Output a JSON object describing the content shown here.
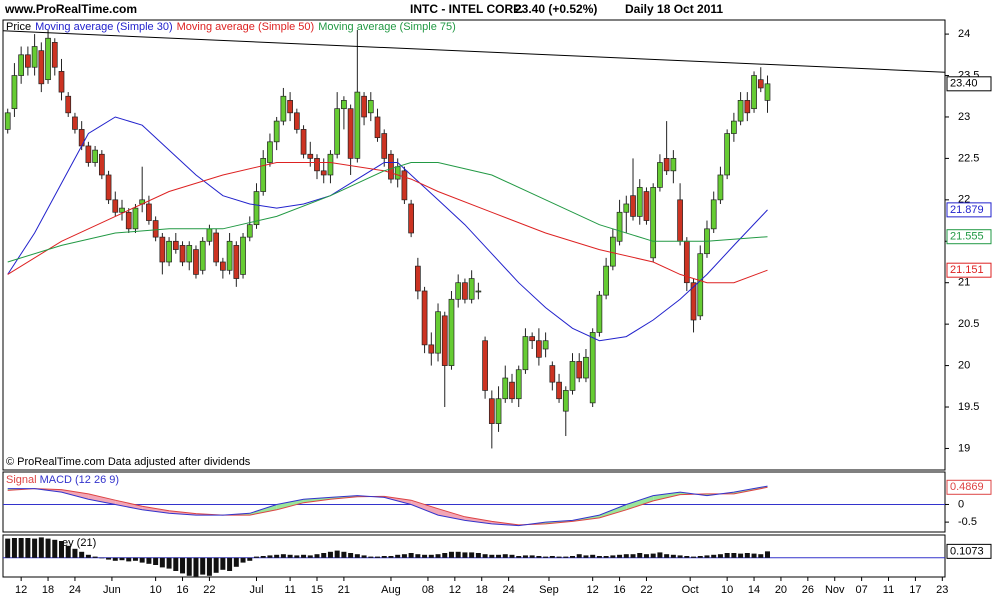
{
  "header": {
    "site": "www.ProRealTime.com"
  },
  "chart_data": [
    {
      "type": "candlestick",
      "title": "INTC - INTEL CORP.",
      "subtitle": "23.40 (+0.52%)",
      "period": "Daily  18 Oct 2011",
      "label": "Price",
      "note": "© ProRealTime.com  Data adjusted after dividends",
      "up_color": "#66cc33",
      "down_color": "#cc3322",
      "candles": [
        [
          22.85,
          23.1,
          22.8,
          23.05
        ],
        [
          23.1,
          23.65,
          23.0,
          23.5
        ],
        [
          23.5,
          23.85,
          23.4,
          23.75
        ],
        [
          23.75,
          23.85,
          23.5,
          23.6
        ],
        [
          23.6,
          24.0,
          23.5,
          23.85
        ],
        [
          23.8,
          23.9,
          23.3,
          23.4
        ],
        [
          23.45,
          24.05,
          23.4,
          23.95
        ],
        [
          23.9,
          23.95,
          23.5,
          23.6
        ],
        [
          23.55,
          23.7,
          23.2,
          23.3
        ],
        [
          23.25,
          23.3,
          23.0,
          23.05
        ],
        [
          23.0,
          23.05,
          22.8,
          22.85
        ],
        [
          22.85,
          22.95,
          22.6,
          22.65
        ],
        [
          22.65,
          22.7,
          22.4,
          22.45
        ],
        [
          22.45,
          22.65,
          22.4,
          22.6
        ],
        [
          22.55,
          22.6,
          22.25,
          22.3
        ],
        [
          22.3,
          22.35,
          21.95,
          22.0
        ],
        [
          22.0,
          22.1,
          21.8,
          21.85
        ],
        [
          21.85,
          22.0,
          21.75,
          21.9
        ],
        [
          21.85,
          21.9,
          21.6,
          21.65
        ],
        [
          21.65,
          21.95,
          21.6,
          21.9
        ],
        [
          21.95,
          22.4,
          21.85,
          22.0
        ],
        [
          21.95,
          22.05,
          21.7,
          21.75
        ],
        [
          21.75,
          21.8,
          21.5,
          21.55
        ],
        [
          21.55,
          21.6,
          21.1,
          21.25
        ],
        [
          21.25,
          21.55,
          21.2,
          21.5
        ],
        [
          21.5,
          21.6,
          21.35,
          21.4
        ],
        [
          21.45,
          21.5,
          21.2,
          21.25
        ],
        [
          21.25,
          21.5,
          21.15,
          21.45
        ],
        [
          21.4,
          21.45,
          21.05,
          21.1
        ],
        [
          21.15,
          21.55,
          21.1,
          21.5
        ],
        [
          21.5,
          21.7,
          21.45,
          21.65
        ],
        [
          21.6,
          21.65,
          21.2,
          21.25
        ],
        [
          21.25,
          21.3,
          21.05,
          21.15
        ],
        [
          21.15,
          21.6,
          21.1,
          21.5
        ],
        [
          21.45,
          21.5,
          20.95,
          21.05
        ],
        [
          21.1,
          21.6,
          21.05,
          21.55
        ],
        [
          21.55,
          21.8,
          21.5,
          21.7
        ],
        [
          21.7,
          22.2,
          21.65,
          22.1
        ],
        [
          22.1,
          22.6,
          22.05,
          22.5
        ],
        [
          22.45,
          22.8,
          22.4,
          22.7
        ],
        [
          22.7,
          23.0,
          22.6,
          22.95
        ],
        [
          22.95,
          23.35,
          22.9,
          23.25
        ],
        [
          23.2,
          23.3,
          22.95,
          23.05
        ],
        [
          23.05,
          23.1,
          22.8,
          22.85
        ],
        [
          22.85,
          22.9,
          22.5,
          22.55
        ],
        [
          22.55,
          22.7,
          22.4,
          22.5
        ],
        [
          22.5,
          22.55,
          22.25,
          22.35
        ],
        [
          22.35,
          22.5,
          22.2,
          22.3
        ],
        [
          22.3,
          22.6,
          22.2,
          22.55
        ],
        [
          22.55,
          23.3,
          22.5,
          23.1
        ],
        [
          23.1,
          23.25,
          22.85,
          23.2
        ],
        [
          23.1,
          23.15,
          22.3,
          22.5
        ],
        [
          22.5,
          24.05,
          22.45,
          23.3
        ],
        [
          23.25,
          23.3,
          22.9,
          23.0
        ],
        [
          23.05,
          23.3,
          22.95,
          23.2
        ],
        [
          23.0,
          23.1,
          22.7,
          22.75
        ],
        [
          22.8,
          22.85,
          22.4,
          22.5
        ],
        [
          22.55,
          22.6,
          22.2,
          22.25
        ],
        [
          22.25,
          22.5,
          22.15,
          22.4
        ],
        [
          22.35,
          22.4,
          21.95,
          22.0
        ],
        [
          21.95,
          22.0,
          21.55,
          21.6
        ],
        [
          21.2,
          21.3,
          20.8,
          20.9
        ],
        [
          20.9,
          20.95,
          20.15,
          20.25
        ],
        [
          20.25,
          20.4,
          20.0,
          20.15
        ],
        [
          20.15,
          20.75,
          20.05,
          20.65
        ],
        [
          20.6,
          20.65,
          19.5,
          20.0
        ],
        [
          20.0,
          20.9,
          19.95,
          20.8
        ],
        [
          20.8,
          21.1,
          20.7,
          21.0
        ],
        [
          21.0,
          21.05,
          20.75,
          20.8
        ],
        [
          20.8,
          21.15,
          20.75,
          21.05
        ],
        [
          20.9,
          21.0,
          20.8,
          20.9
        ],
        [
          20.3,
          20.35,
          19.6,
          19.7
        ],
        [
          19.6,
          19.7,
          19.0,
          19.3
        ],
        [
          19.3,
          19.75,
          19.2,
          19.6
        ],
        [
          19.6,
          20.0,
          19.55,
          19.85
        ],
        [
          19.8,
          19.9,
          19.55,
          19.6
        ],
        [
          19.6,
          20.0,
          19.5,
          19.95
        ],
        [
          19.95,
          20.45,
          19.9,
          20.35
        ],
        [
          20.35,
          20.4,
          20.2,
          20.3
        ],
        [
          20.3,
          20.45,
          20.0,
          20.1
        ],
        [
          20.2,
          20.4,
          20.1,
          20.3
        ],
        [
          20.0,
          20.05,
          19.7,
          19.8
        ],
        [
          19.8,
          19.9,
          19.55,
          19.6
        ],
        [
          19.45,
          19.75,
          19.15,
          19.7
        ],
        [
          19.7,
          20.15,
          19.65,
          20.05
        ],
        [
          20.05,
          20.15,
          19.8,
          19.85
        ],
        [
          19.85,
          20.2,
          19.8,
          20.1
        ],
        [
          19.55,
          20.45,
          19.5,
          20.4
        ],
        [
          20.4,
          20.9,
          20.35,
          20.85
        ],
        [
          20.85,
          21.3,
          20.8,
          21.2
        ],
        [
          21.2,
          21.65,
          21.15,
          21.55
        ],
        [
          21.5,
          22.0,
          21.45,
          21.85
        ],
        [
          21.85,
          22.05,
          21.6,
          21.95
        ],
        [
          22.05,
          22.5,
          21.75,
          21.8
        ],
        [
          21.8,
          22.25,
          21.7,
          22.15
        ],
        [
          22.1,
          22.15,
          21.7,
          21.75
        ],
        [
          21.3,
          22.2,
          21.25,
          22.15
        ],
        [
          22.15,
          22.55,
          22.1,
          22.45
        ],
        [
          22.5,
          22.95,
          22.3,
          22.35
        ],
        [
          22.35,
          22.6,
          22.2,
          22.5
        ],
        [
          22.0,
          22.2,
          21.45,
          21.5
        ],
        [
          21.5,
          21.55,
          20.9,
          21.0
        ],
        [
          21.0,
          21.05,
          20.4,
          20.55
        ],
        [
          20.6,
          21.45,
          20.55,
          21.35
        ],
        [
          21.35,
          21.75,
          21.3,
          21.65
        ],
        [
          21.65,
          22.1,
          21.6,
          22.0
        ],
        [
          22.0,
          22.4,
          21.95,
          22.3
        ],
        [
          22.3,
          22.85,
          22.25,
          22.8
        ],
        [
          22.8,
          23.05,
          22.7,
          22.95
        ],
        [
          22.95,
          23.3,
          22.9,
          23.2
        ],
        [
          23.2,
          23.3,
          22.95,
          23.05
        ],
        [
          23.1,
          23.55,
          23.05,
          23.5
        ],
        [
          23.45,
          23.6,
          23.3,
          23.35
        ],
        [
          23.2,
          23.5,
          23.05,
          23.4
        ]
      ],
      "last_label": "23.40",
      "series": [
        {
          "name": "Moving average (Simple 30)",
          "color": "#2222cc",
          "x": [
            0,
            4,
            8,
            12,
            16,
            20,
            24,
            28,
            32,
            36,
            40,
            44,
            48,
            52,
            56,
            58,
            60,
            64,
            68,
            72,
            76,
            80,
            84,
            88,
            92,
            96,
            100,
            104,
            108,
            113
          ],
          "values": [
            21.1,
            21.6,
            22.2,
            22.8,
            23.0,
            22.9,
            22.6,
            22.3,
            22.05,
            21.95,
            21.9,
            21.95,
            22.05,
            22.25,
            22.45,
            22.45,
            22.3,
            22.0,
            21.7,
            21.35,
            21.0,
            20.7,
            20.45,
            20.3,
            20.35,
            20.55,
            20.8,
            21.1,
            21.45,
            21.879
          ]
        },
        {
          "name": "Moving average (Simple 50)",
          "color": "#dd2222",
          "x": [
            0,
            8,
            16,
            24,
            32,
            40,
            48,
            56,
            60,
            64,
            72,
            80,
            88,
            96,
            100,
            104,
            108,
            113
          ],
          "values": [
            21.1,
            21.5,
            21.8,
            22.1,
            22.3,
            22.45,
            22.45,
            22.35,
            22.25,
            22.1,
            21.85,
            21.6,
            21.4,
            21.25,
            21.1,
            21.0,
            21.0,
            21.151
          ]
        },
        {
          "name": "Moving average (Simple 75)",
          "color": "#229944",
          "x": [
            0,
            8,
            16,
            24,
            32,
            40,
            48,
            56,
            60,
            64,
            72,
            80,
            88,
            96,
            104,
            113
          ],
          "values": [
            21.25,
            21.45,
            21.6,
            21.65,
            21.65,
            21.8,
            22.05,
            22.35,
            22.45,
            22.45,
            22.3,
            22.0,
            21.7,
            21.5,
            21.5,
            21.555
          ]
        }
      ],
      "trendline": {
        "color": "#000000",
        "x": [
          -0.7,
          139.4
        ],
        "values": [
          24.04,
          23.54
        ]
      },
      "xlim": [
        -0.7,
        139.4
      ],
      "ylim": [
        18.74,
        24.17
      ],
      "yticks": [
        19,
        19.5,
        20,
        20.5,
        21,
        21.5,
        22,
        22.5,
        23,
        23.5,
        24
      ]
    },
    {
      "type": "line",
      "fill_up": "#99e699",
      "fill_down": "#f2a6b6",
      "series": [
        {
          "name": "Signal",
          "color": "#dd4444",
          "x": [
            0,
            4,
            8,
            12,
            16,
            20,
            24,
            28,
            32,
            36,
            40,
            44,
            48,
            52,
            56,
            60,
            64,
            68,
            72,
            76,
            80,
            84,
            88,
            92,
            96,
            100,
            104,
            108,
            113
          ],
          "values": [
            0.4,
            0.45,
            0.42,
            0.3,
            0.12,
            -0.05,
            -0.18,
            -0.26,
            -0.3,
            -0.3,
            -0.15,
            0.05,
            0.15,
            0.22,
            0.23,
            0.12,
            -0.12,
            -0.35,
            -0.48,
            -0.58,
            -0.55,
            -0.48,
            -0.38,
            -0.15,
            0.1,
            0.28,
            0.3,
            0.3,
            0.4869
          ]
        },
        {
          "name": "MACD (12 26 9)",
          "color": "#3333cc",
          "x": [
            0,
            4,
            8,
            12,
            16,
            20,
            24,
            28,
            32,
            36,
            40,
            44,
            48,
            52,
            56,
            60,
            64,
            68,
            72,
            76,
            80,
            84,
            88,
            92,
            96,
            100,
            104,
            108,
            113
          ],
          "values": [
            0.45,
            0.45,
            0.35,
            0.15,
            0,
            -0.15,
            -0.25,
            -0.3,
            -0.3,
            -0.25,
            0,
            0.15,
            0.2,
            0.25,
            0.2,
            0,
            -0.3,
            -0.45,
            -0.55,
            -0.6,
            -0.5,
            -0.45,
            -0.3,
            0,
            0.25,
            0.35,
            0.25,
            0.35,
            0.52
          ]
        }
      ],
      "xlim": [
        -0.7,
        139.4
      ],
      "ylim": [
        -0.78,
        0.92
      ],
      "yticks": [
        0,
        -0.5
      ]
    },
    {
      "type": "bar",
      "title": "ey (21)",
      "color": "#111111",
      "values": [
        0.32,
        0.33,
        0.33,
        0.33,
        0.32,
        0.34,
        0.32,
        0.3,
        0.28,
        0.2,
        0.15,
        0.1,
        0.05,
        0.02,
        0,
        -0.03,
        -0.05,
        -0.04,
        -0.06,
        -0.05,
        -0.08,
        -0.1,
        -0.12,
        -0.16,
        -0.18,
        -0.22,
        -0.26,
        -0.3,
        -0.31,
        -0.28,
        -0.3,
        -0.25,
        -0.2,
        -0.22,
        -0.15,
        -0.08,
        -0.05,
        0.02,
        0.03,
        0.04,
        0.05,
        0.06,
        0.05,
        0.04,
        0.05,
        0.04,
        0.06,
        0.08,
        0.1,
        0.12,
        0.1,
        0.08,
        0.06,
        0.04,
        0.02,
        0.02,
        0.03,
        0.03,
        0.05,
        0.06,
        0.08,
        0.06,
        0.05,
        0.05,
        0.06,
        0.08,
        0.1,
        0.1,
        0.09,
        0.09,
        0.08,
        0.06,
        0.05,
        0.05,
        0.06,
        0.05,
        0.03,
        0.04,
        0.04,
        0.03,
        0.02,
        0.03,
        0.02,
        0.02,
        0.03,
        0.06,
        0.04,
        0.05,
        0.03,
        0.03,
        0.04,
        0.05,
        0.06,
        0.06,
        0.08,
        0.06,
        0.07,
        0.09,
        0.06,
        0.05,
        0.04,
        0.03,
        0.02,
        0.03,
        0.04,
        0.05,
        0.06,
        0.08,
        0.08,
        0.07,
        0.08,
        0.07,
        0.06,
        0.1073
      ],
      "xlim": [
        -0.7,
        139.4
      ],
      "ylim": [
        -0.32,
        0.38
      ],
      "xticks": [
        {
          "value": 2,
          "label": "12"
        },
        {
          "value": 6,
          "label": "18"
        },
        {
          "value": 10,
          "label": "24"
        },
        {
          "value": 15.5,
          "label": "Jun"
        },
        {
          "value": 22,
          "label": "10"
        },
        {
          "value": 26,
          "label": "16"
        },
        {
          "value": 30,
          "label": "22"
        },
        {
          "value": 37,
          "label": "Jul"
        },
        {
          "value": 42,
          "label": "11"
        },
        {
          "value": 46,
          "label": "15"
        },
        {
          "value": 50,
          "label": "21"
        },
        {
          "value": 57,
          "label": "Aug"
        },
        {
          "value": 62.5,
          "label": "08"
        },
        {
          "value": 66.5,
          "label": "12"
        },
        {
          "value": 70.5,
          "label": "18"
        },
        {
          "value": 74.5,
          "label": "24"
        },
        {
          "value": 80.5,
          "label": "Sep"
        },
        {
          "value": 87,
          "label": "12"
        },
        {
          "value": 91,
          "label": "16"
        },
        {
          "value": 95,
          "label": "22"
        },
        {
          "value": 101.5,
          "label": "Oct"
        },
        {
          "value": 107,
          "label": "10"
        },
        {
          "value": 111,
          "label": "14"
        },
        {
          "value": 115,
          "label": "20"
        },
        {
          "value": 119,
          "label": "26"
        },
        {
          "value": 123,
          "label": "Nov"
        },
        {
          "value": 127,
          "label": "07"
        },
        {
          "value": 131,
          "label": "11"
        },
        {
          "value": 135,
          "label": "17"
        },
        {
          "value": 139,
          "label": "23"
        }
      ]
    }
  ]
}
